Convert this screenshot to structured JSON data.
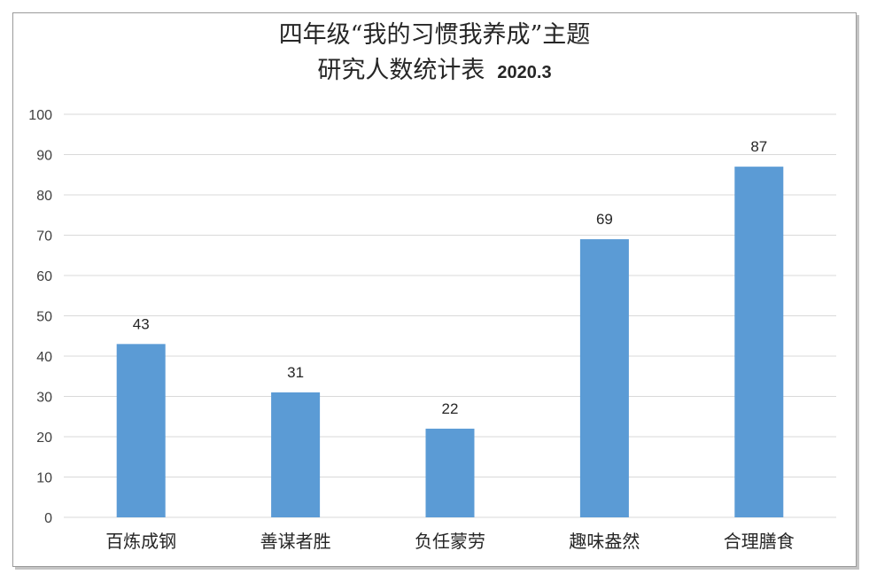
{
  "chart_data": {
    "type": "bar",
    "title": "四年级“我的习惯我养成”主题",
    "subtitle": "研究人数统计表",
    "date": "2020.3",
    "categories": [
      "百炼成钢",
      "善谋者胜",
      "负任蒙劳",
      "趣味盎然",
      "合理膳食"
    ],
    "values": [
      43,
      31,
      22,
      69,
      87
    ],
    "data_labels": [
      "43",
      "31",
      "22",
      "69",
      "87"
    ],
    "xlabel": "",
    "ylabel": "",
    "ylim": [
      0,
      100
    ],
    "yticks": [
      0,
      10,
      20,
      30,
      40,
      50,
      60,
      70,
      80,
      90,
      100
    ],
    "grid": true,
    "legend": "none",
    "bar_color": "#5b9bd5",
    "grid_color": "#d9d9d9"
  }
}
